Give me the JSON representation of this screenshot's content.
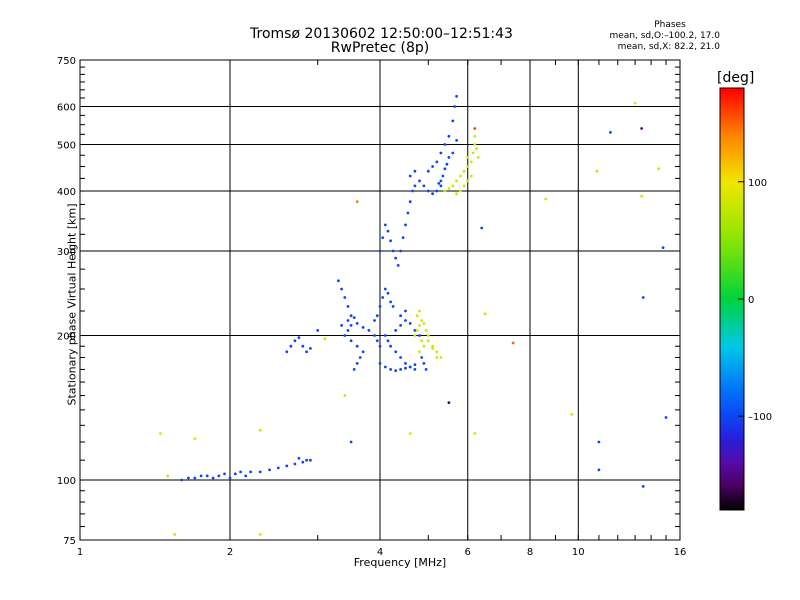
{
  "title_line1": "Tromsø 20130602 12:50:00–12:51:43",
  "title_line2": "RwPretec (8p)",
  "stats": {
    "header": "Phases",
    "line1": "mean, sd,O:–100.2, 17.0",
    "line2": "mean, sd,X:  82.2, 21.0"
  },
  "colorbar": {
    "unit": "[deg]",
    "ticks": [
      {
        "value": 100,
        "label": "100"
      },
      {
        "value": 0,
        "label": "0"
      },
      {
        "value": -100,
        "label": "–100"
      }
    ],
    "range": [
      -180,
      180
    ]
  },
  "chart_data": {
    "type": "scatter",
    "title": "Tromsø 20130602 12:50:00–12:51:43 RwPretec (8p)",
    "xlabel": "Frequency [MHz]",
    "ylabel": "Stationary phase Virtual Height [km]",
    "x_scale": "log",
    "y_scale": "log",
    "xlim": [
      1,
      16
    ],
    "ylim": [
      75,
      750
    ],
    "x_ticks_major": [
      1,
      2,
      4,
      6,
      8,
      10,
      16
    ],
    "x_ticks_labels": [
      "1",
      "2",
      "4",
      "6",
      "8",
      "10",
      "16"
    ],
    "y_ticks_major": [
      75,
      100,
      200,
      300,
      400,
      500,
      600,
      750
    ],
    "y_ticks_labels": [
      "75",
      "100",
      "200",
      "300",
      "400",
      "500",
      "600",
      "750"
    ],
    "grid": true,
    "color_encoding": "phase in degrees (rainbow colormap, -180 to 180)",
    "series": [
      {
        "mode": "O",
        "color_value": -100,
        "points": [
          [
            1.6,
            100
          ],
          [
            1.65,
            101
          ],
          [
            1.7,
            101
          ],
          [
            1.75,
            102
          ],
          [
            1.8,
            102
          ],
          [
            1.85,
            101
          ],
          [
            1.9,
            102
          ],
          [
            1.95,
            103
          ],
          [
            2.0,
            101
          ],
          [
            2.05,
            103
          ],
          [
            2.1,
            104
          ],
          [
            2.15,
            102
          ],
          [
            2.2,
            104
          ],
          [
            2.3,
            104
          ],
          [
            2.4,
            105
          ],
          [
            2.5,
            106
          ],
          [
            2.6,
            107
          ],
          [
            2.7,
            108
          ],
          [
            2.8,
            109
          ],
          [
            2.9,
            110
          ],
          [
            2.75,
            111
          ],
          [
            2.85,
            110
          ],
          [
            2.6,
            185
          ],
          [
            2.65,
            190
          ],
          [
            2.7,
            195
          ],
          [
            2.75,
            198
          ],
          [
            2.8,
            190
          ],
          [
            2.85,
            185
          ],
          [
            2.9,
            188
          ],
          [
            3.3,
            260
          ],
          [
            3.35,
            250
          ],
          [
            3.4,
            240
          ],
          [
            3.45,
            230
          ],
          [
            3.5,
            220
          ],
          [
            3.5,
            210
          ],
          [
            3.45,
            205
          ],
          [
            3.4,
            200
          ],
          [
            3.35,
            210
          ],
          [
            3.5,
            195
          ],
          [
            3.6,
            190
          ],
          [
            3.7,
            185
          ],
          [
            3.65,
            180
          ],
          [
            3.6,
            175
          ],
          [
            3.55,
            170
          ],
          [
            3.45,
            215
          ],
          [
            3.55,
            218
          ],
          [
            3.6,
            212
          ],
          [
            3.7,
            208
          ],
          [
            3.8,
            205
          ],
          [
            3.9,
            200
          ],
          [
            3.95,
            195
          ],
          [
            4.0,
            190
          ],
          [
            3.9,
            215
          ],
          [
            3.95,
            220
          ],
          [
            4.0,
            230
          ],
          [
            4.05,
            240
          ],
          [
            4.1,
            250
          ],
          [
            4.15,
            245
          ],
          [
            4.2,
            235
          ],
          [
            4.25,
            230
          ],
          [
            4.1,
            200
          ],
          [
            4.15,
            195
          ],
          [
            4.2,
            190
          ],
          [
            4.3,
            185
          ],
          [
            4.4,
            180
          ],
          [
            4.5,
            175
          ],
          [
            4.6,
            172
          ],
          [
            4.7,
            170
          ],
          [
            4.0,
            175
          ],
          [
            4.1,
            172
          ],
          [
            4.2,
            170
          ],
          [
            4.3,
            169
          ],
          [
            4.4,
            170
          ],
          [
            4.5,
            171
          ],
          [
            4.6,
            172
          ],
          [
            4.7,
            174
          ],
          [
            4.3,
            205
          ],
          [
            4.4,
            210
          ],
          [
            4.5,
            215
          ],
          [
            4.6,
            212
          ],
          [
            4.7,
            205
          ],
          [
            4.8,
            200
          ],
          [
            4.4,
            220
          ],
          [
            4.5,
            225
          ],
          [
            4.0,
            300
          ],
          [
            4.05,
            320
          ],
          [
            4.1,
            340
          ],
          [
            4.15,
            330
          ],
          [
            4.2,
            315
          ],
          [
            4.25,
            300
          ],
          [
            4.3,
            290
          ],
          [
            4.35,
            280
          ],
          [
            4.4,
            300
          ],
          [
            4.45,
            320
          ],
          [
            4.5,
            340
          ],
          [
            4.55,
            360
          ],
          [
            4.6,
            380
          ],
          [
            4.65,
            400
          ],
          [
            4.7,
            410
          ],
          [
            4.6,
            430
          ],
          [
            4.7,
            440
          ],
          [
            4.8,
            420
          ],
          [
            4.9,
            410
          ],
          [
            5.0,
            400
          ],
          [
            5.1,
            395
          ],
          [
            5.2,
            400
          ],
          [
            5.3,
            410
          ],
          [
            5.0,
            440
          ],
          [
            5.1,
            450
          ],
          [
            5.2,
            460
          ],
          [
            5.3,
            480
          ],
          [
            5.4,
            500
          ],
          [
            5.5,
            520
          ],
          [
            5.6,
            560
          ],
          [
            5.65,
            600
          ],
          [
            5.7,
            630
          ],
          [
            5.5,
            470
          ],
          [
            5.45,
            455
          ],
          [
            5.4,
            445
          ],
          [
            5.35,
            430
          ],
          [
            5.3,
            420
          ],
          [
            5.25,
            415
          ],
          [
            5.6,
            480
          ],
          [
            5.7,
            510
          ],
          [
            3.0,
            205
          ],
          [
            4.9,
            175
          ],
          [
            4.85,
            180
          ],
          [
            4.95,
            170
          ],
          [
            11,
            120
          ],
          [
            11,
            105
          ],
          [
            11.6,
            530
          ],
          [
            13.5,
            240
          ],
          [
            13.5,
            97
          ],
          [
            14.8,
            305
          ],
          [
            15,
            135
          ],
          [
            6.4,
            335
          ],
          [
            3.5,
            120
          ]
        ]
      },
      {
        "mode": "X",
        "color_value": 82,
        "points": [
          [
            4.7,
            200
          ],
          [
            4.75,
            205
          ],
          [
            4.8,
            210
          ],
          [
            4.85,
            215
          ],
          [
            4.9,
            212
          ],
          [
            4.95,
            205
          ],
          [
            5.0,
            200
          ],
          [
            4.85,
            195
          ],
          [
            4.9,
            190
          ],
          [
            5.0,
            195
          ],
          [
            5.1,
            188
          ],
          [
            4.8,
            185
          ],
          [
            5.2,
            180
          ],
          [
            4.75,
            220
          ],
          [
            4.8,
            225
          ],
          [
            5.4,
            400
          ],
          [
            5.5,
            405
          ],
          [
            5.6,
            410
          ],
          [
            5.7,
            420
          ],
          [
            5.8,
            430
          ],
          [
            5.9,
            440
          ],
          [
            6.0,
            450
          ],
          [
            6.1,
            460
          ],
          [
            6.15,
            480
          ],
          [
            6.2,
            500
          ],
          [
            6.2,
            520
          ],
          [
            6.1,
            430
          ],
          [
            6.0,
            420
          ],
          [
            5.9,
            410
          ],
          [
            5.8,
            400
          ],
          [
            5.7,
            395
          ],
          [
            6.3,
            470
          ],
          [
            6.25,
            490
          ],
          [
            6.0,
            470
          ],
          [
            1.45,
            125
          ],
          [
            1.5,
            102
          ],
          [
            1.7,
            122
          ],
          [
            1.55,
            77
          ],
          [
            2.3,
            127
          ],
          [
            2.3,
            77
          ],
          [
            3.1,
            197
          ],
          [
            3.4,
            150
          ],
          [
            5.1,
            190
          ],
          [
            5.2,
            185
          ],
          [
            5.3,
            180
          ],
          [
            6.2,
            125
          ],
          [
            6.5,
            222
          ],
          [
            8.6,
            385
          ],
          [
            9.7,
            137
          ],
          [
            10.9,
            440
          ],
          [
            13.0,
            610
          ],
          [
            13.4,
            390
          ],
          [
            14.5,
            445
          ],
          [
            4.6,
            125
          ]
        ]
      }
    ],
    "outliers": [
      {
        "x": 7.4,
        "y": 193,
        "color_value": 150
      },
      {
        "x": 13.4,
        "y": 540,
        "color_value": -150
      },
      {
        "x": 3.6,
        "y": 380,
        "color_value": 140
      },
      {
        "x": 5.5,
        "y": 145,
        "color_value": -160
      },
      {
        "x": 6.2,
        "y": 540,
        "color_value": 160
      }
    ]
  }
}
